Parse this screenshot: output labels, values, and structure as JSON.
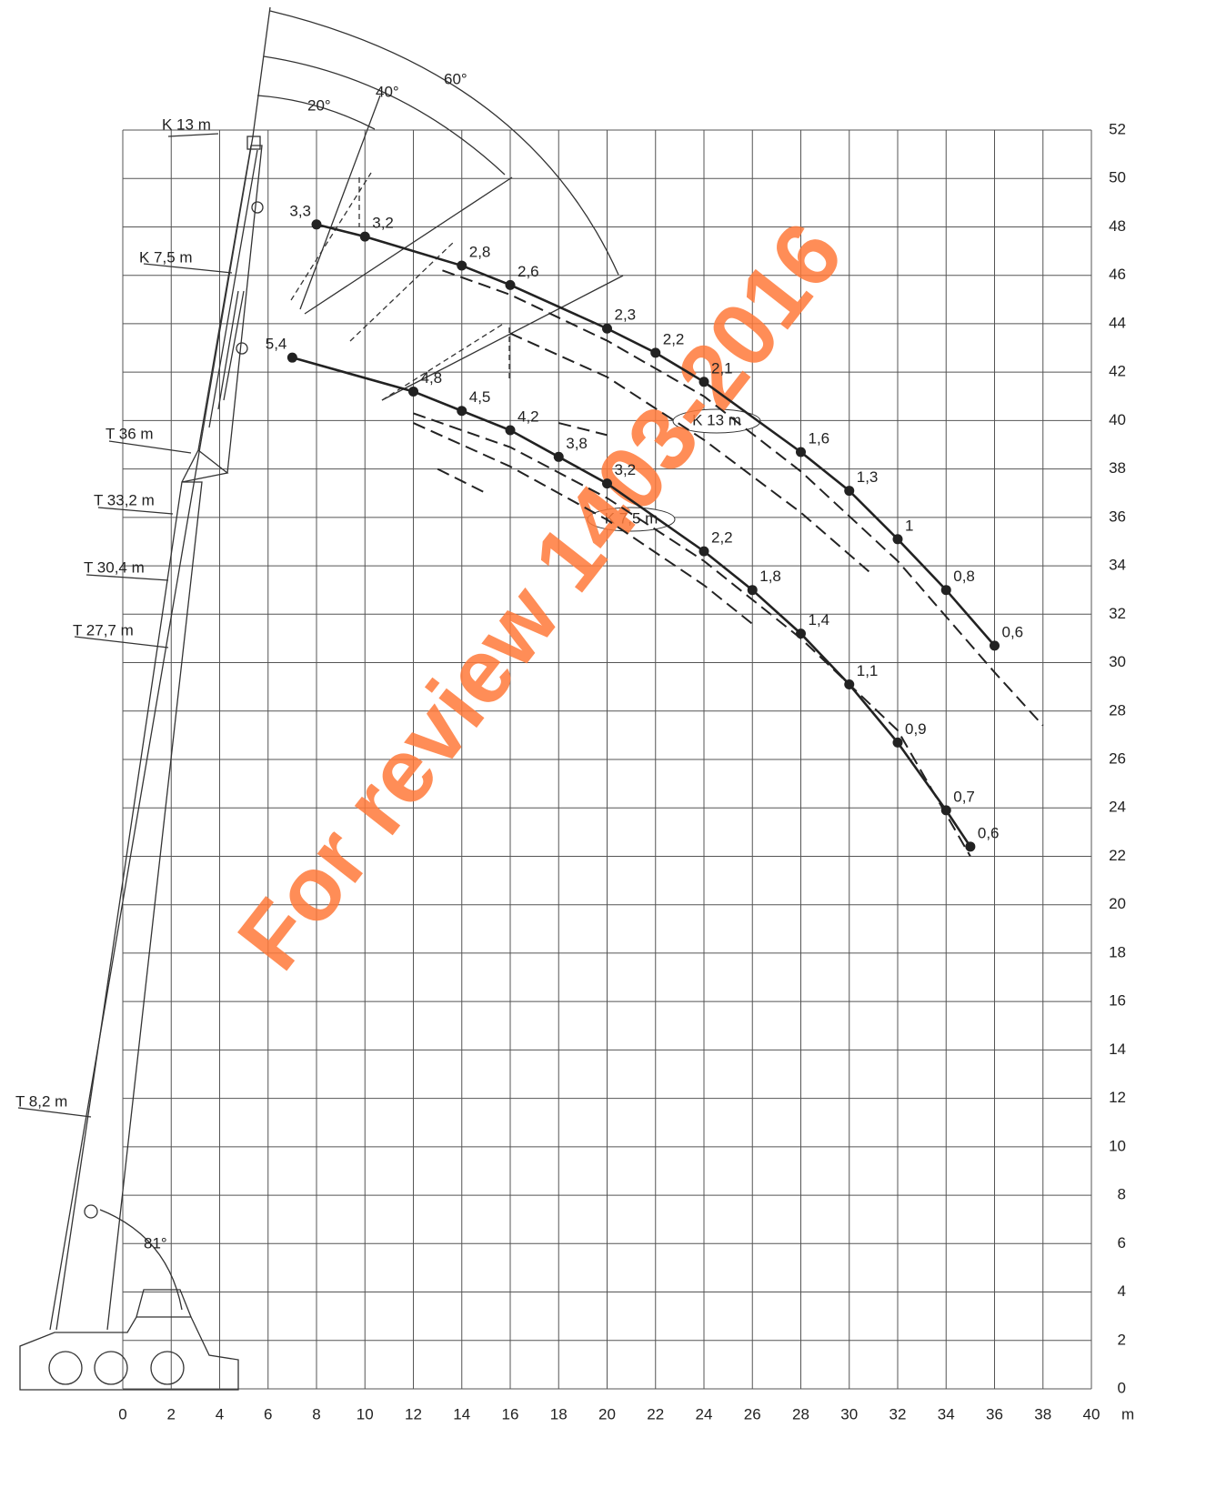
{
  "chart_data": {
    "type": "line",
    "xlabel": "m",
    "xlim": [
      0,
      40
    ],
    "ylim": [
      0,
      52
    ],
    "xticks": [
      0,
      2,
      4,
      6,
      8,
      10,
      12,
      14,
      16,
      18,
      20,
      22,
      24,
      26,
      28,
      30,
      32,
      34,
      36,
      38,
      40
    ],
    "yticks": [
      0,
      2,
      4,
      6,
      8,
      10,
      12,
      14,
      16,
      18,
      20,
      22,
      24,
      26,
      28,
      30,
      32,
      34,
      36,
      38,
      40,
      42,
      44,
      46,
      48,
      50,
      52
    ],
    "grid": true,
    "series": [
      {
        "name": "K 13 m",
        "color": "#222222",
        "x": [
          8,
          10,
          14,
          16,
          20,
          22,
          24,
          28,
          30,
          32,
          34,
          36
        ],
        "values": [
          48.1,
          47.6,
          46.4,
          45.6,
          43.8,
          42.8,
          41.6,
          38.7,
          37.1,
          35.1,
          33.0,
          30.7
        ],
        "load_labels": [
          "3,3",
          "3,2",
          "2,8",
          "2,6",
          "2,3",
          "2,2",
          "2,1",
          "1,6",
          "1,3",
          "1",
          "0,8",
          "0,6"
        ]
      },
      {
        "name": "K 7,5 m",
        "color": "#222222",
        "x": [
          7,
          12,
          14,
          16,
          18,
          20,
          24,
          26,
          28,
          30,
          32,
          34,
          35
        ],
        "values": [
          42.6,
          41.2,
          40.4,
          39.6,
          38.5,
          37.4,
          34.6,
          33.0,
          31.2,
          29.1,
          26.7,
          23.9,
          22.4
        ],
        "load_labels": [
          "5,4",
          "4,8",
          "4,5",
          "4,2",
          "3,8",
          "3,2",
          "2,2",
          "1,8",
          "1,4",
          "1,1",
          "0,9",
          "0,7",
          "0,6"
        ]
      },
      {
        "color": "#222222",
        "dashed": true,
        "x": [
          13.2,
          16,
          20,
          24,
          28,
          32,
          36,
          38
        ],
        "values": [
          46.2,
          45.2,
          43.3,
          41.0,
          37.9,
          34.2,
          29.6,
          27.4
        ]
      },
      {
        "color": "#222222",
        "dashed": true,
        "x": [
          16,
          20,
          24,
          28,
          31
        ],
        "values": [
          43.6,
          41.8,
          39.2,
          36.2,
          33.6
        ]
      },
      {
        "color": "#222222",
        "dashed": true,
        "x": [
          12,
          16,
          20,
          24,
          28,
          32,
          35
        ],
        "values": [
          40.3,
          38.9,
          36.8,
          34.2,
          31.0,
          27.2,
          22.0
        ]
      },
      {
        "color": "#222222",
        "dashed": true,
        "x": [
          12,
          16,
          20,
          24,
          26
        ],
        "values": [
          39.9,
          38.1,
          35.9,
          33.2,
          31.6
        ]
      },
      {
        "color": "#222222",
        "dashed": true,
        "x": [
          13,
          15
        ],
        "values": [
          38.0,
          37.0
        ]
      },
      {
        "color": "#222222",
        "dashed": true,
        "x": [
          18,
          20
        ],
        "values": [
          39.9,
          39.4
        ]
      }
    ],
    "annotations": [
      "K 13 m",
      "K 7,5 m",
      "T 36 m",
      "T 33,2 m",
      "T 30,4 m",
      "T 27,7 m",
      "T 8,2 m",
      "20°",
      "40°",
      "60°",
      "81°",
      "K 13 m",
      "K 7,5 m"
    ],
    "watermark": "For review 1403-2016"
  }
}
